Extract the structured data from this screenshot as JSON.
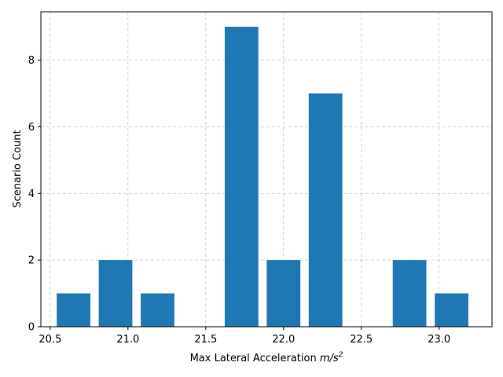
{
  "chart_data": {
    "type": "bar",
    "xlabel": "Max Lateral Acceleration",
    "xlabel_unit_base": "m/s",
    "xlabel_unit_exp": "2",
    "ylabel": "Scenario Count",
    "bar_color": "#1f77b4",
    "grid": true,
    "xlim": [
      20.44,
      23.34
    ],
    "ylim": [
      0,
      9.45
    ],
    "bar_width": 0.216,
    "x_ticks": [
      20.5,
      21.0,
      21.5,
      22.0,
      22.5,
      23.0
    ],
    "x_tick_labels": [
      "20.5",
      "21.0",
      "21.5",
      "22.0",
      "22.5",
      "23.0"
    ],
    "y_ticks": [
      0,
      2,
      4,
      6,
      8
    ],
    "y_tick_labels": [
      "0",
      "2",
      "4",
      "6",
      "8"
    ],
    "bins": [
      {
        "x": 20.65,
        "count": 1
      },
      {
        "x": 20.92,
        "count": 2
      },
      {
        "x": 21.19,
        "count": 1
      },
      {
        "x": 21.46,
        "count": 0
      },
      {
        "x": 21.73,
        "count": 9
      },
      {
        "x": 22.0,
        "count": 2
      },
      {
        "x": 22.27,
        "count": 7
      },
      {
        "x": 22.54,
        "count": 0
      },
      {
        "x": 22.81,
        "count": 2
      },
      {
        "x": 23.08,
        "count": 1
      }
    ]
  }
}
